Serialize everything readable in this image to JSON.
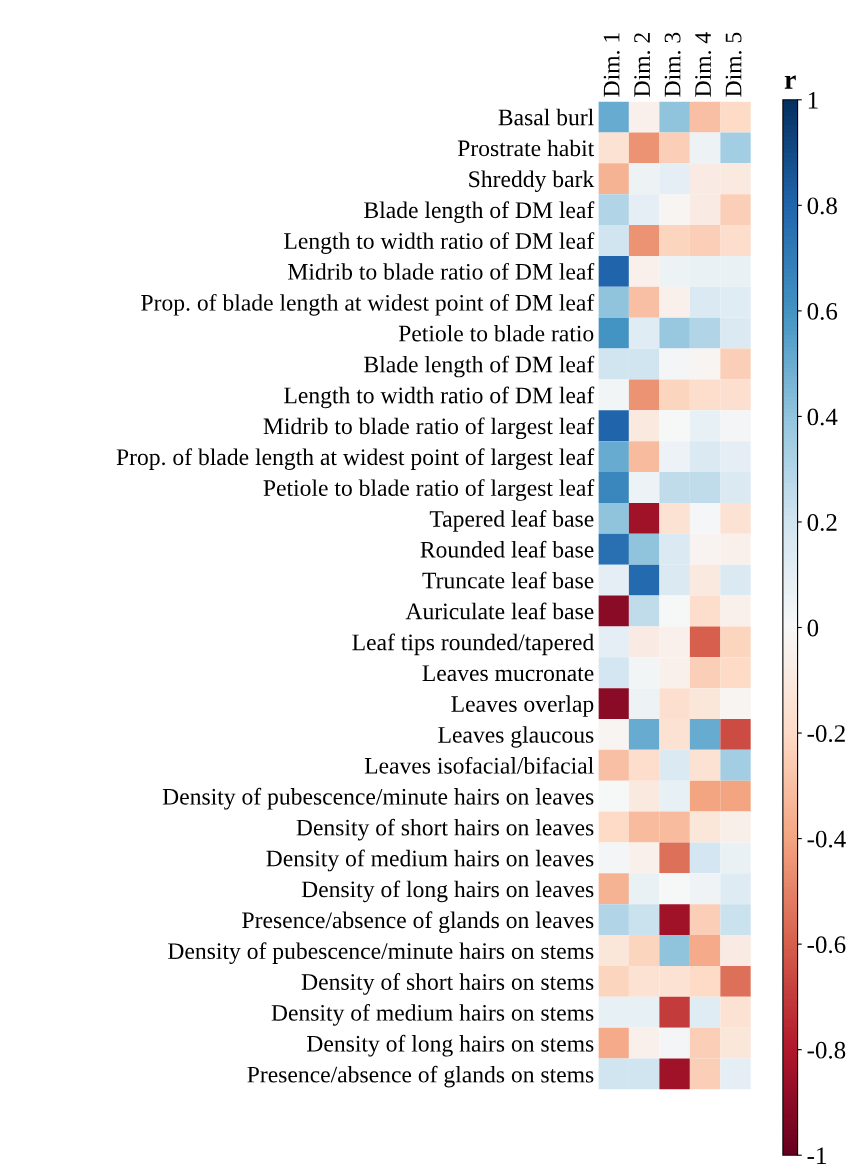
{
  "chart_data": {
    "type": "heatmap",
    "clabel": "r",
    "categories": [
      "Dim. 1",
      "Dim. 2",
      "Dim. 3",
      "Dim. 4",
      "Dim. 5"
    ],
    "y_categories": [
      "Basal burl",
      "Prostrate habit",
      "Shreddy bark",
      "Blade length of DM leaf",
      "Length to width ratio of DM leaf",
      "Midrib to blade ratio of DM leaf",
      "Prop. of blade length at widest point of DM leaf",
      "Petiole to blade ratio",
      "Blade length of DM leaf",
      "Length to width ratio of DM leaf",
      "Midrib to blade ratio of largest leaf",
      "Prop. of blade length at widest point of largest leaf",
      "Petiole to blade ratio of largest leaf",
      "Tapered leaf base",
      "Rounded leaf base",
      "Truncate leaf base",
      "Auriculate leaf base",
      "Leaf tips rounded/tapered",
      "Leaves mucronate",
      "Leaves overlap",
      "Leaves glaucous",
      "Leaves isofacial/bifacial",
      "Density of pubescence/minute hairs on leaves",
      "Density of short hairs on leaves",
      "Density of medium hairs on leaves",
      "Density of long hairs on leaves",
      "Presence/absence of glands on leaves",
      "Density of pubescence/minute hairs on stems",
      "Density of short hairs on stems",
      "Density of medium hairs on stems",
      "Density of long hairs on stems",
      "Presence/absence of glands on stems"
    ],
    "cells": [
      [
        0.5,
        -0.05,
        0.4,
        -0.3,
        -0.2
      ],
      [
        -0.15,
        -0.45,
        -0.25,
        0.05,
        0.35
      ],
      [
        -0.35,
        0.05,
        0.1,
        -0.08,
        -0.1
      ],
      [
        0.3,
        0.1,
        -0.02,
        -0.08,
        -0.25
      ],
      [
        0.2,
        -0.45,
        -0.22,
        -0.25,
        -0.18
      ],
      [
        0.8,
        -0.05,
        0.05,
        0.07,
        0.07
      ],
      [
        0.4,
        -0.3,
        -0.05,
        0.15,
        0.12
      ],
      [
        0.6,
        0.12,
        0.38,
        0.3,
        0.15
      ],
      [
        0.2,
        0.2,
        0.02,
        -0.02,
        -0.25
      ],
      [
        0.03,
        -0.45,
        -0.22,
        -0.18,
        -0.17
      ],
      [
        0.8,
        -0.1,
        0,
        0.08,
        0.02
      ],
      [
        0.5,
        -0.32,
        0.06,
        0.15,
        0.1
      ],
      [
        0.65,
        0.06,
        0.25,
        0.25,
        0.15
      ],
      [
        0.4,
        -0.85,
        -0.15,
        0.01,
        -0.15
      ],
      [
        0.75,
        0.4,
        0.15,
        -0.03,
        -0.05
      ],
      [
        0.1,
        0.78,
        0.15,
        -0.1,
        0.15
      ],
      [
        -0.9,
        0.25,
        0,
        -0.18,
        -0.05
      ],
      [
        0.1,
        -0.08,
        -0.05,
        -0.6,
        -0.22
      ],
      [
        0.18,
        0.03,
        -0.05,
        -0.25,
        -0.2
      ],
      [
        -0.9,
        0.05,
        -0.17,
        -0.12,
        -0.02
      ],
      [
        -0.02,
        0.5,
        -0.15,
        0.5,
        -0.65
      ],
      [
        -0.3,
        -0.18,
        0.15,
        -0.15,
        0.35
      ],
      [
        0,
        -0.1,
        0.08,
        -0.4,
        -0.4
      ],
      [
        -0.2,
        -0.32,
        -0.32,
        -0.12,
        -0.06
      ],
      [
        0.02,
        -0.05,
        -0.55,
        0.18,
        0.07
      ],
      [
        -0.35,
        0.07,
        0,
        0.04,
        0.13
      ],
      [
        0.3,
        0.22,
        -0.85,
        -0.25,
        0.22
      ],
      [
        -0.12,
        -0.22,
        0.4,
        -0.38,
        -0.08
      ],
      [
        -0.22,
        -0.15,
        -0.15,
        -0.2,
        -0.55
      ],
      [
        0.08,
        0.08,
        -0.7,
        0.12,
        -0.15
      ],
      [
        -0.38,
        -0.05,
        0.02,
        -0.25,
        -0.12
      ],
      [
        0.2,
        0.2,
        -0.85,
        -0.25,
        0.1
      ]
    ],
    "clim": [
      -1,
      1
    ],
    "cticks": [
      {
        "value": 1,
        "label": "1"
      },
      {
        "value": 0.8,
        "label": "0.8"
      },
      {
        "value": 0.6,
        "label": "0.6"
      },
      {
        "value": 0.4,
        "label": "0.4"
      },
      {
        "value": 0.2,
        "label": "0.2"
      },
      {
        "value": 0,
        "label": "0"
      },
      {
        "value": -0.2,
        "label": "-0.2"
      },
      {
        "value": -0.4,
        "label": "-0.4"
      },
      {
        "value": -0.6,
        "label": "-0.6"
      },
      {
        "value": -0.8,
        "label": "-0.8"
      },
      {
        "value": -1,
        "label": "-1"
      }
    ]
  }
}
